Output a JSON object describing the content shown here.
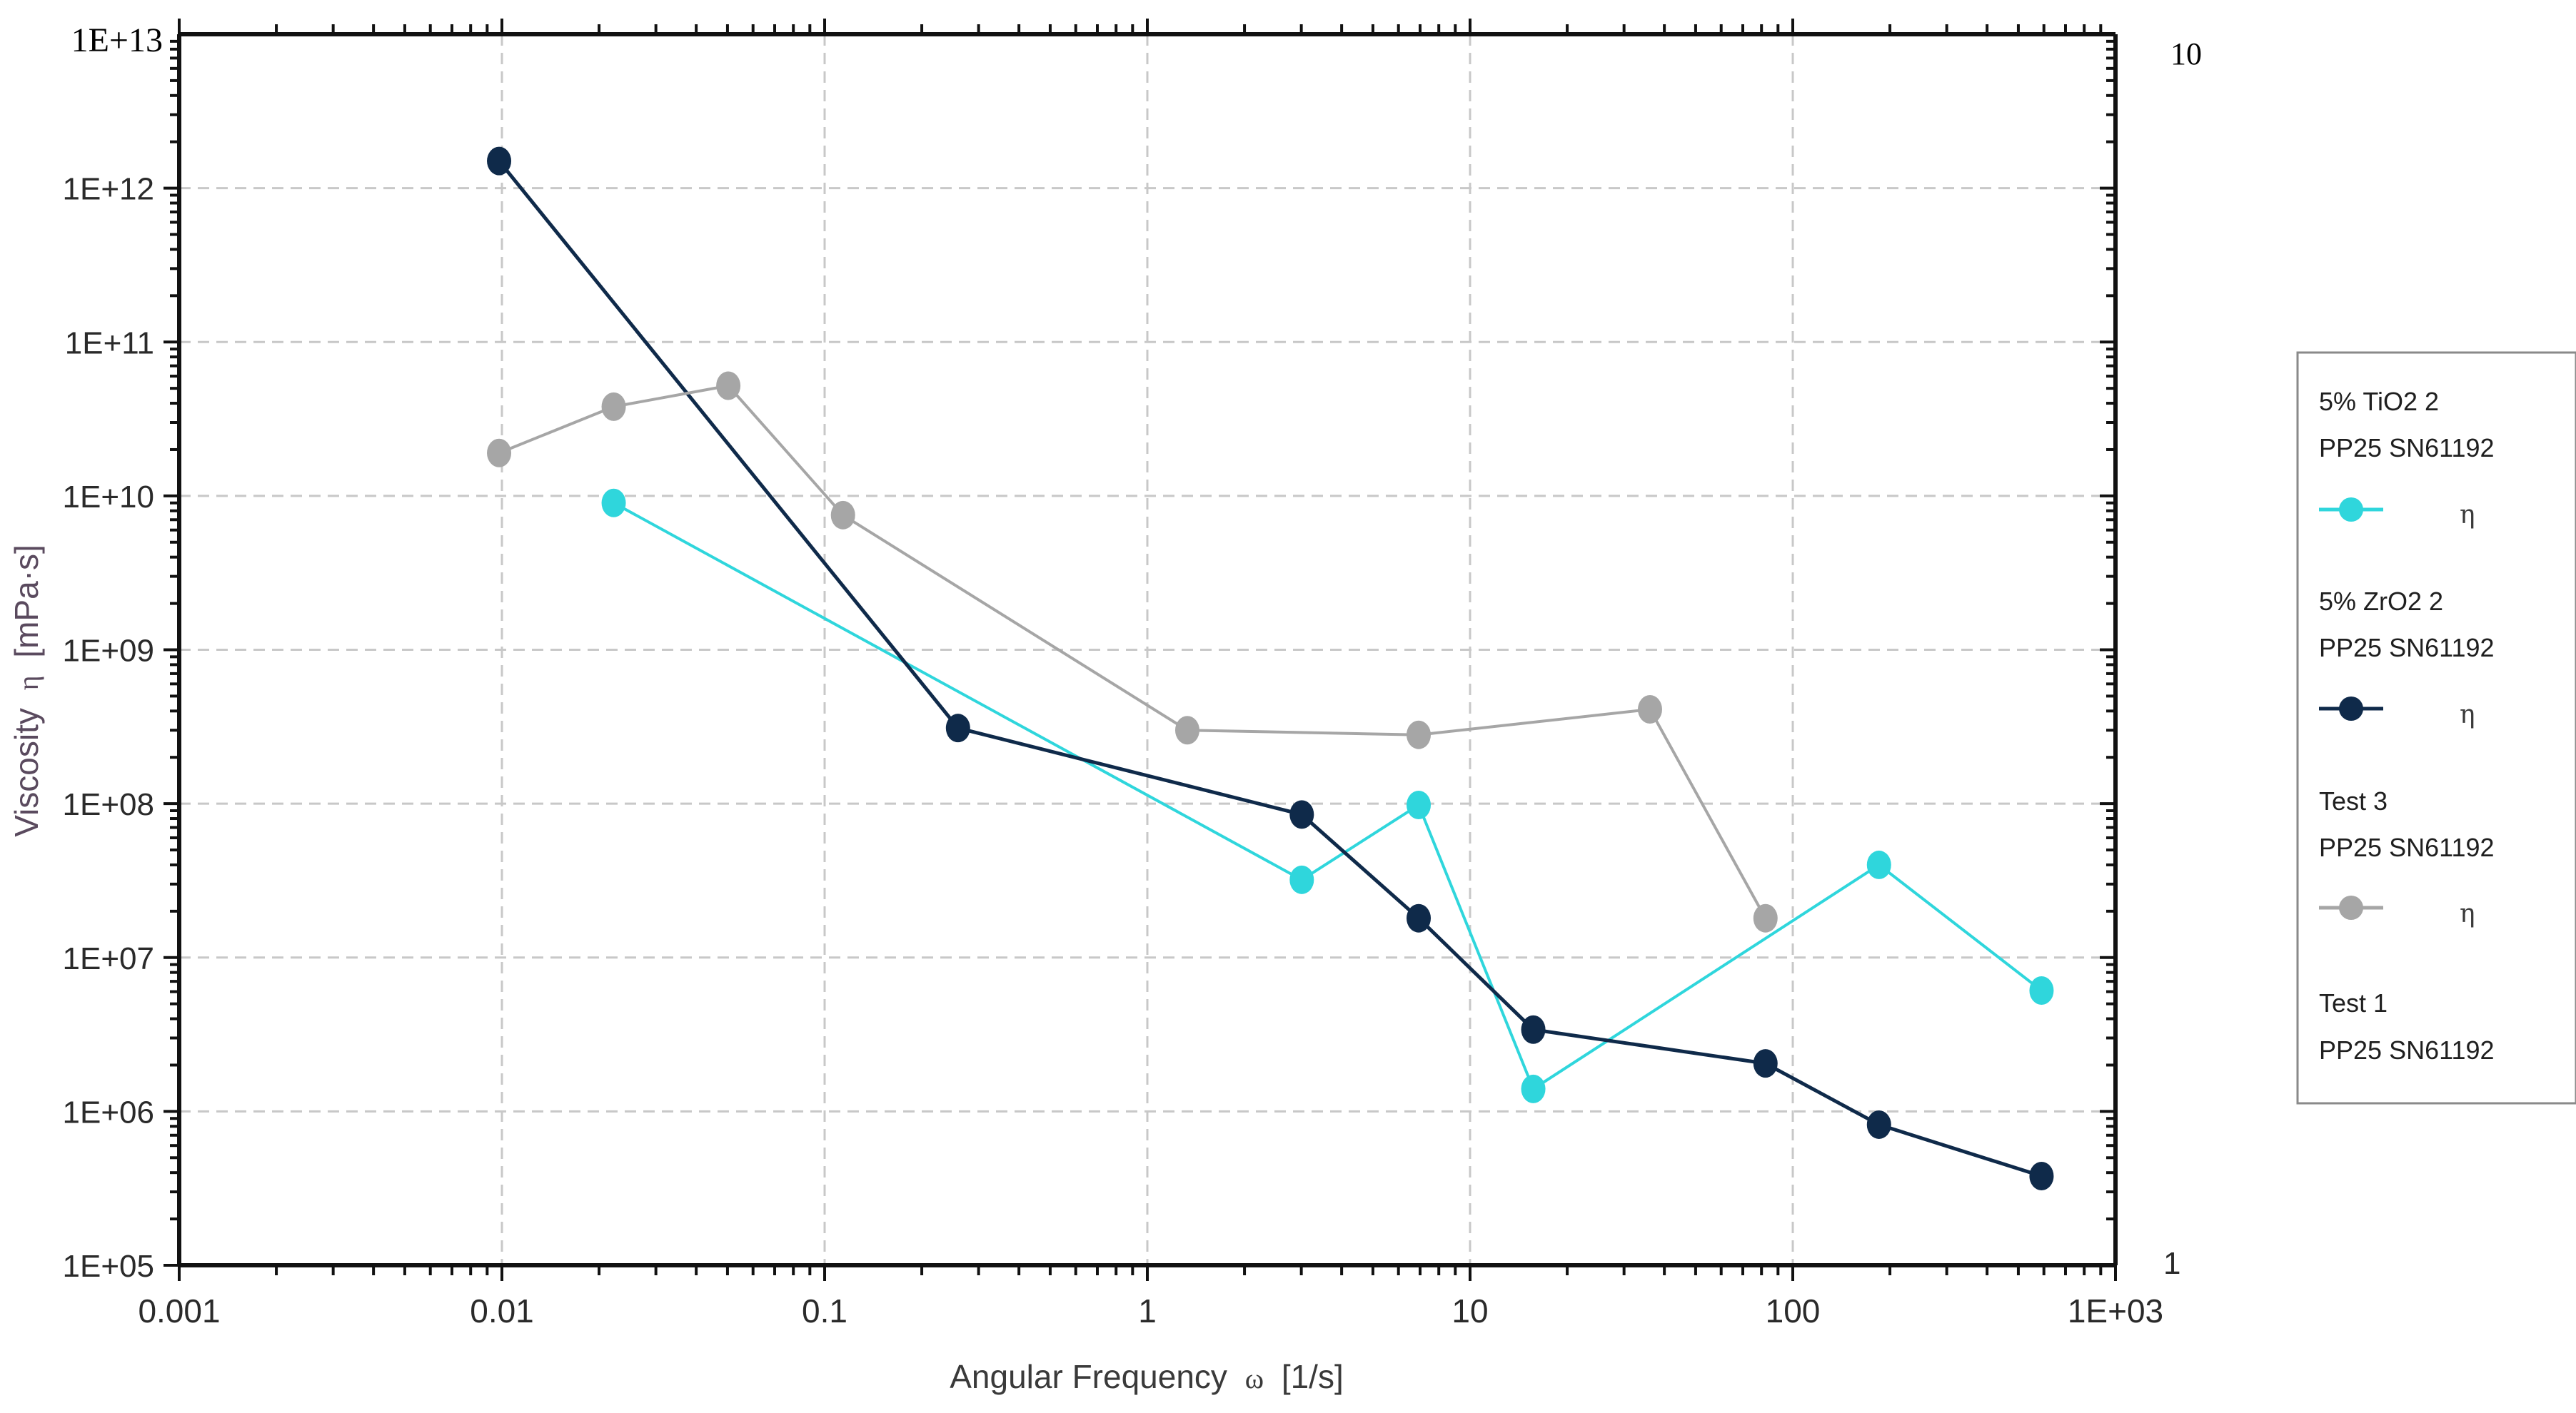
{
  "chart_data": {
    "type": "line",
    "title": "",
    "xlabel": "Angular Frequency",
    "xlabel_symbol": "ω",
    "xlabel_units": "[1/s]",
    "ylabel": "Viscosity",
    "ylabel_symbol": "η",
    "ylabel_units": "[mPa·s]",
    "xscale": "log",
    "yscale": "log",
    "xlim": [
      0.001,
      1000
    ],
    "ylim": [
      100000,
      10000000000000
    ],
    "grid": true,
    "legend_position": "right",
    "x_tick_labels": [
      "0.001",
      "0.01",
      "0.1",
      "1",
      "10",
      "100",
      "1E+03"
    ],
    "y_tick_labels": [
      "1E+05",
      "1E+06",
      "1E+07",
      "1E+08",
      "1E+09",
      "1E+10",
      "1E+11",
      "1E+12",
      "1E+13"
    ],
    "secondary_y_tick_labels": [
      "10",
      "1"
    ],
    "series": [
      {
        "name": "5% TiO2 2",
        "subtitle": "PP25 SN61192",
        "symbol": "η",
        "color": "#2fd6dc",
        "x": [
          0.0222,
          3.01,
          6.93,
          15.7,
          185,
          590
        ],
        "y": [
          9000000000,
          32000000,
          98000000,
          1400000,
          40000000,
          6100000
        ]
      },
      {
        "name": "5% ZrO2 2",
        "subtitle": "PP25 SN61192",
        "symbol": "η",
        "color": "#0f2a4a",
        "x": [
          0.0098,
          0.259,
          3.01,
          6.93,
          15.7,
          82.3,
          185,
          590
        ],
        "y": [
          1500000000000,
          310000000,
          85000000,
          18000000,
          3400000,
          2050000,
          820000,
          380000
        ]
      },
      {
        "name": "Test 3",
        "subtitle": "PP25 SN61192",
        "symbol": "η",
        "color": "#a6a6a6",
        "x": [
          0.0098,
          0.0222,
          0.0503,
          0.114,
          1.33,
          6.93,
          36.1,
          82.3
        ],
        "y": [
          19000000000,
          38000000000,
          52000000000,
          7500000000,
          300000000,
          280000000,
          410000000,
          18000000
        ]
      },
      {
        "name": "Test 1",
        "subtitle": "PP25 SN61192",
        "symbol": "",
        "color": "#cccccc",
        "x": [],
        "y": []
      }
    ]
  }
}
